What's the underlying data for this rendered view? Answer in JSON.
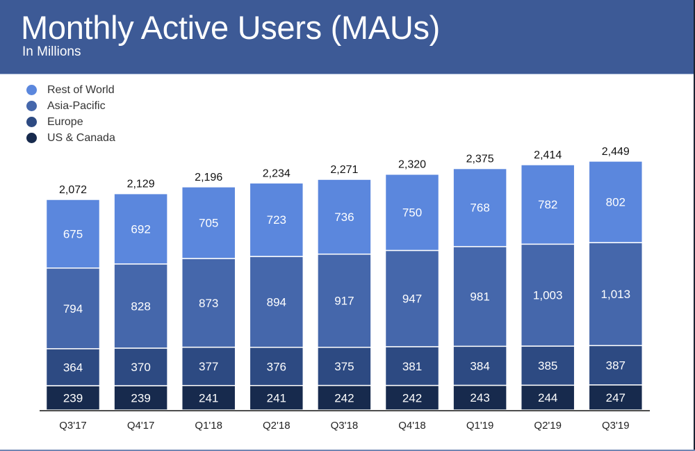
{
  "header": {
    "title": "Monthly Active Users (MAUs)",
    "subtitle": "In Millions"
  },
  "colors": {
    "header_bg": "#3d5a96",
    "rest_of_world": "#5b87dd",
    "asia_pacific": "#4567ab",
    "europe": "#2d4a82",
    "us_canada": "#172a4d"
  },
  "chart_data": {
    "type": "bar",
    "stacked": true,
    "title": "Monthly Active Users (MAUs)",
    "subtitle": "In Millions",
    "xlabel": "",
    "ylabel": "",
    "ylim": [
      0,
      2600
    ],
    "grid": false,
    "legend_position": "top-left",
    "categories": [
      "Q3'17",
      "Q4'17",
      "Q1'18",
      "Q2'18",
      "Q3'18",
      "Q4'18",
      "Q1'19",
      "Q2'19",
      "Q3'19"
    ],
    "series": [
      {
        "name": "US & Canada",
        "color": "#172a4d",
        "values": [
          239,
          239,
          241,
          241,
          242,
          242,
          243,
          244,
          247
        ]
      },
      {
        "name": "Europe",
        "color": "#2d4a82",
        "values": [
          364,
          370,
          377,
          376,
          375,
          381,
          384,
          385,
          387
        ]
      },
      {
        "name": "Asia-Pacific",
        "color": "#4567ab",
        "values": [
          794,
          828,
          873,
          894,
          917,
          947,
          981,
          1003,
          1013
        ]
      },
      {
        "name": "Rest of World",
        "color": "#5b87dd",
        "values": [
          675,
          692,
          705,
          723,
          736,
          750,
          768,
          782,
          802
        ]
      }
    ],
    "totals": [
      2072,
      2129,
      2196,
      2234,
      2271,
      2320,
      2375,
      2414,
      2449
    ],
    "segment_labels": [
      [
        "239",
        "239",
        "241",
        "241",
        "242",
        "242",
        "243",
        "244",
        "247"
      ],
      [
        "364",
        "370",
        "377",
        "376",
        "375",
        "381",
        "384",
        "385",
        "387"
      ],
      [
        "794",
        "828",
        "873",
        "894",
        "917",
        "947",
        "981",
        "1,003",
        "1,013"
      ],
      [
        "675",
        "692",
        "705",
        "723",
        "736",
        "750",
        "768",
        "782",
        "802"
      ]
    ],
    "total_labels": [
      "2,072",
      "2,129",
      "2,196",
      "2,234",
      "2,271",
      "2,320",
      "2,375",
      "2,414",
      "2,449"
    ]
  },
  "legend": [
    {
      "label": "Rest of World",
      "color": "#5b87dd"
    },
    {
      "label": "Asia-Pacific",
      "color": "#4567ab"
    },
    {
      "label": "Europe",
      "color": "#2d4a82"
    },
    {
      "label": "US & Canada",
      "color": "#172a4d"
    }
  ]
}
